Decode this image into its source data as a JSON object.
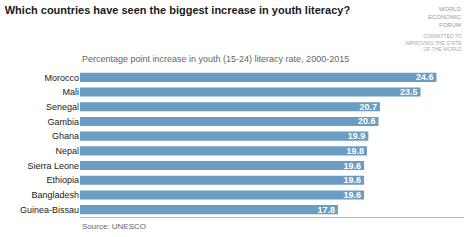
{
  "chart_data": {
    "type": "bar",
    "orientation": "horizontal",
    "title": "Which countries have seen the biggest increase in youth literacy?",
    "subtitle": "Percentage point increase in youth (15-24) literacy rate, 2000-2015",
    "annotations": [
      "Source: UNESCO",
      "WORLD\nECONOMIC\nFORUM",
      "COMMITTED TO\nIMPROVING THE STATE\nOF THE WORLD"
    ],
    "categories": [
      "Guinea-Bissau",
      "Bangladesh",
      "Ethiopia",
      "Sierra Leone",
      "Nepal",
      "Ghana",
      "Gambia",
      "Senegal",
      "Mali",
      "Morocco"
    ],
    "values": [
      17.8,
      19.6,
      19.6,
      19.6,
      19.8,
      19.9,
      20.6,
      20.7,
      23.5,
      24.6
    ],
    "color": "#6b9dc2",
    "xlim": [
      0,
      26.5
    ],
    "data_labels": true,
    "tick_labels": "y",
    "grid": false
  }
}
